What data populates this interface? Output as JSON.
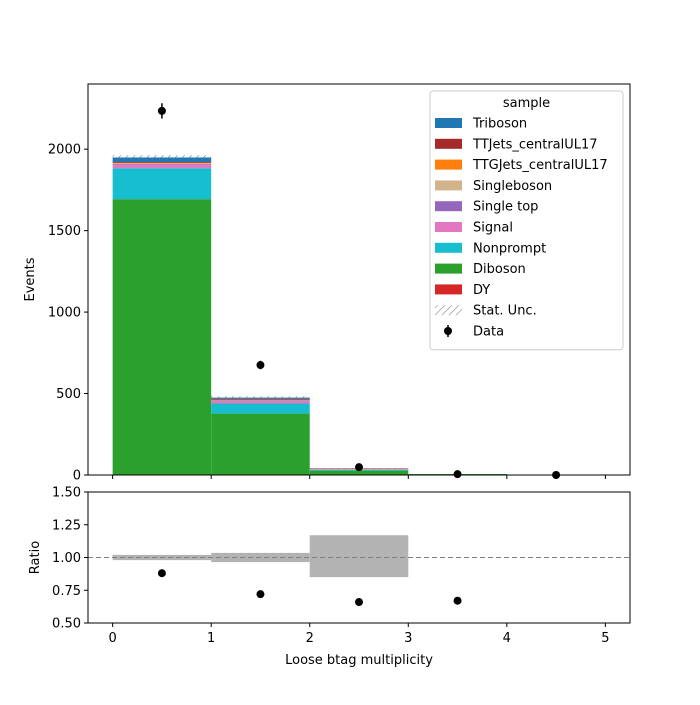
{
  "chart_data": [
    {
      "type": "bar",
      "stacked": true,
      "xlabel": "",
      "ylabel": "Events",
      "xlim": [
        -0.25,
        5.25
      ],
      "ylim": [
        0,
        2400
      ],
      "bin_edges": [
        0,
        1,
        2,
        3,
        4,
        5
      ],
      "series": [
        {
          "name": "DY",
          "color": "#d62728",
          "values": [
            3,
            2,
            0,
            0,
            0
          ]
        },
        {
          "name": "Diboson",
          "color": "#2ca02c",
          "values": [
            1690,
            375,
            27,
            6,
            0
          ]
        },
        {
          "name": "Nonprompt",
          "color": "#17becf",
          "values": [
            190,
            62,
            4,
            0,
            0
          ]
        },
        {
          "name": "Signal",
          "color": "#e377c2",
          "values": [
            20,
            15,
            3,
            0,
            0
          ]
        },
        {
          "name": "Single top",
          "color": "#9467bd",
          "values": [
            5,
            3,
            1,
            0,
            0
          ]
        },
        {
          "name": "Singleboson",
          "color": "#d2b48c",
          "values": [
            5,
            3,
            1,
            0,
            0
          ]
        },
        {
          "name": "TTGJets_centralUL17",
          "color": "#ff7f0e",
          "values": [
            3,
            2,
            1,
            0,
            0
          ]
        },
        {
          "name": "TTJets_centralUL17",
          "color": "#a52a2a",
          "values": [
            5,
            5,
            2,
            0,
            0
          ]
        },
        {
          "name": "Triboson",
          "color": "#1f77b4",
          "values": [
            28,
            8,
            2,
            0,
            0
          ]
        }
      ],
      "stat_unc": [
        14,
        8,
        2,
        0,
        0
      ],
      "data": {
        "name": "Data",
        "x": [
          0.5,
          1.5,
          2.5,
          3.5,
          4.5
        ],
        "y": [
          2235,
          675,
          48,
          5,
          0
        ],
        "yerr": [
          47,
          26,
          7,
          2,
          0
        ]
      },
      "legend": {
        "title": "sample",
        "placement": "top-right",
        "entries": [
          {
            "label": "Triboson",
            "kind": "patch",
            "color": "#1f77b4"
          },
          {
            "label": "TTJets_centralUL17",
            "kind": "patch",
            "color": "#a52a2a"
          },
          {
            "label": "TTGJets_centralUL17",
            "kind": "patch",
            "color": "#ff7f0e"
          },
          {
            "label": "Singleboson",
            "kind": "patch",
            "color": "#d2b48c"
          },
          {
            "label": "Single top",
            "kind": "patch",
            "color": "#9467bd"
          },
          {
            "label": "Signal",
            "kind": "patch",
            "color": "#e377c2"
          },
          {
            "label": "Nonprompt",
            "kind": "patch",
            "color": "#17becf"
          },
          {
            "label": "Diboson",
            "kind": "patch",
            "color": "#2ca02c"
          },
          {
            "label": "DY",
            "kind": "patch",
            "color": "#d62728"
          },
          {
            "label": "Stat. Unc.",
            "kind": "hatch",
            "color": "#888888"
          },
          {
            "label": "Data",
            "kind": "marker",
            "color": "#000000"
          }
        ]
      },
      "yticks": [
        0,
        500,
        1000,
        1500,
        2000
      ],
      "grid": false
    },
    {
      "type": "scatter",
      "xlabel": "Loose btag multiplicity",
      "ylabel": "Ratio",
      "xlim": [
        -0.25,
        5.25
      ],
      "ylim": [
        0.5,
        1.5
      ],
      "xticks": [
        0,
        1,
        2,
        3,
        4,
        5
      ],
      "yticks": [
        "0.50",
        "0.75",
        "1.00",
        "1.25",
        "1.50"
      ],
      "reference_line": 1.0,
      "unc_band": [
        {
          "lo": 0.98,
          "hi": 1.02
        },
        {
          "lo": 0.965,
          "hi": 1.035
        },
        {
          "lo": 0.85,
          "hi": 1.17
        },
        {
          "lo": 1.0,
          "hi": 1.0
        },
        {
          "lo": 1.0,
          "hi": 1.0
        }
      ],
      "x": [
        0.5,
        1.5,
        2.5,
        3.5
      ],
      "y": [
        0.88,
        0.72,
        0.66,
        0.67
      ],
      "grid": false
    }
  ]
}
